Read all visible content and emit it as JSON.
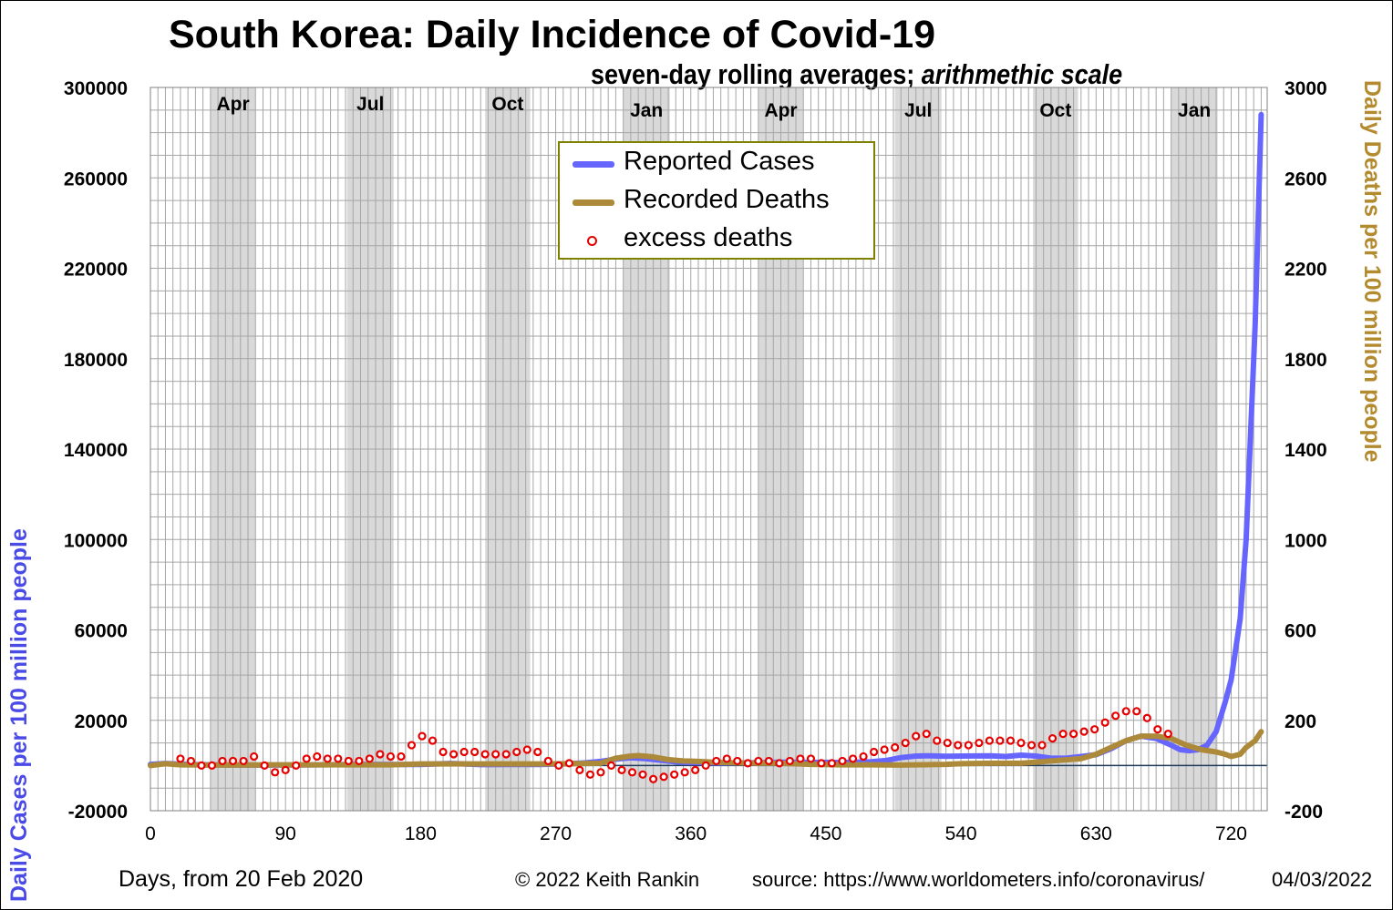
{
  "title": "South Korea: Daily Incidence of Covid-19",
  "subtitle_main": "seven-day rolling averages; ",
  "subtitle_italic": "arithmethic scale",
  "footer": {
    "xlabel": "Days,  from 20 Feb 2020",
    "copyright": "© 2022   Keith Rankin",
    "source": "source: https://www.worldometers.info/coronavirus/",
    "date": "04/03/2022"
  },
  "colors": {
    "cases": "#6666ff",
    "deaths": "#ad8a3a",
    "excess": "#e60000",
    "shade": "#d9d9d9"
  },
  "chart_data": {
    "type": "line",
    "xlabel": "Days,  from 20 Feb 2020",
    "ylabel_left": "Daily Cases per 100 million people",
    "ylabel_right": "Daily Deaths per 100 million people",
    "xlim": [
      0,
      744
    ],
    "ylim_left": [
      -20000,
      300000
    ],
    "ylim_right": [
      -200,
      3000
    ],
    "x_ticks": [
      "0",
      "90",
      "180",
      "270",
      "360",
      "450",
      "540",
      "630",
      "720"
    ],
    "y_ticks_left": [
      "300000",
      "260000",
      "220000",
      "180000",
      "140000",
      "100000",
      "60000",
      "20000",
      "-20000"
    ],
    "y_ticks_right": [
      "3000",
      "2600",
      "2200",
      "1800",
      "1400",
      "1000",
      "600",
      "200",
      "-200"
    ],
    "grid": true,
    "legend_position": "top-center",
    "shaded_bands": [
      {
        "label": "Apr",
        "start": 40,
        "end": 70
      },
      {
        "label": "Jul",
        "start": 131,
        "end": 162
      },
      {
        "label": "Oct",
        "start": 223,
        "end": 253
      },
      {
        "label": "Jan",
        "start": 315,
        "end": 346
      },
      {
        "label": "Apr",
        "start": 405,
        "end": 435
      },
      {
        "label": "Jul",
        "start": 496,
        "end": 527
      },
      {
        "label": "Oct",
        "start": 588,
        "end": 618
      },
      {
        "label": "Jan",
        "start": 680,
        "end": 711
      }
    ],
    "series": [
      {
        "name": "Reported Cases",
        "axis": "left",
        "x": [
          0,
          10,
          20,
          30,
          40,
          60,
          80,
          100,
          120,
          140,
          160,
          180,
          200,
          220,
          240,
          260,
          280,
          290,
          300,
          310,
          320,
          330,
          340,
          350,
          360,
          380,
          400,
          420,
          440,
          460,
          480,
          490,
          500,
          510,
          520,
          530,
          540,
          560,
          570,
          580,
          590,
          600,
          610,
          620,
          630,
          640,
          650,
          660,
          670,
          680,
          686,
          692,
          698,
          704,
          710,
          716,
          720,
          726,
          730,
          736,
          740
        ],
        "values": [
          500,
          900,
          600,
          400,
          300,
          200,
          200,
          250,
          350,
          500,
          450,
          450,
          900,
          400,
          450,
          450,
          800,
          1200,
          1800,
          2800,
          3400,
          3000,
          2300,
          1600,
          1300,
          1100,
          1200,
          1500,
          1400,
          1300,
          1700,
          2200,
          3500,
          4200,
          4300,
          4100,
          4200,
          4300,
          4000,
          4600,
          4200,
          3200,
          3200,
          4000,
          4800,
          7500,
          11000,
          13000,
          12000,
          9000,
          7000,
          6500,
          7000,
          9000,
          15000,
          28000,
          38000,
          65000,
          100000,
          195000,
          288000
        ]
      },
      {
        "name": "Recorded Deaths",
        "axis": "right",
        "x": [
          0,
          10,
          20,
          40,
          60,
          80,
          100,
          120,
          140,
          160,
          180,
          200,
          220,
          240,
          260,
          280,
          300,
          310,
          320,
          325,
          335,
          345,
          355,
          365,
          375,
          390,
          405,
          420,
          440,
          460,
          480,
          500,
          510,
          520,
          530,
          540,
          560,
          580,
          600,
          620,
          630,
          640,
          650,
          660,
          665,
          670,
          680,
          690,
          700,
          710,
          716,
          720,
          726,
          730,
          736,
          740
        ],
        "values": [
          0,
          8,
          3,
          2,
          2,
          3,
          3,
          3,
          3,
          3,
          7,
          7,
          7,
          7,
          7,
          8,
          10,
          32,
          42,
          44,
          38,
          26,
          20,
          18,
          15,
          12,
          10,
          10,
          5,
          3,
          3,
          2,
          3,
          4,
          5,
          8,
          10,
          10,
          20,
          30,
          50,
          80,
          110,
          130,
          130,
          130,
          120,
          90,
          70,
          60,
          50,
          40,
          50,
          80,
          110,
          150
        ]
      },
      {
        "name": "excess deaths",
        "axis": "right",
        "marker": "circle",
        "x": [
          20,
          27,
          34,
          41,
          48,
          55,
          62,
          69,
          76,
          83,
          90,
          97,
          104,
          111,
          118,
          125,
          132,
          139,
          146,
          153,
          160,
          167,
          174,
          181,
          188,
          195,
          202,
          209,
          216,
          223,
          230,
          237,
          244,
          251,
          258,
          265,
          272,
          279,
          286,
          293,
          300,
          307,
          314,
          321,
          328,
          335,
          342,
          349,
          356,
          363,
          370,
          377,
          384,
          391,
          398,
          405,
          412,
          419,
          426,
          433,
          440,
          447,
          454,
          461,
          468,
          475,
          482,
          489,
          496,
          503,
          510,
          517,
          524,
          531,
          538,
          545,
          552,
          559,
          566,
          573,
          580,
          587,
          594,
          601,
          608,
          615,
          622,
          629,
          636,
          643,
          650,
          657,
          664,
          671,
          678
        ],
        "values": [
          30,
          20,
          0,
          0,
          20,
          20,
          20,
          40,
          0,
          -30,
          -20,
          0,
          30,
          40,
          30,
          30,
          20,
          20,
          30,
          50,
          40,
          40,
          90,
          130,
          110,
          60,
          50,
          60,
          60,
          50,
          50,
          50,
          60,
          70,
          60,
          20,
          0,
          10,
          -20,
          -40,
          -30,
          0,
          -20,
          -30,
          -40,
          -60,
          -50,
          -40,
          -30,
          -20,
          0,
          20,
          30,
          20,
          10,
          20,
          20,
          10,
          20,
          30,
          30,
          10,
          10,
          20,
          30,
          40,
          60,
          70,
          80,
          100,
          130,
          140,
          110,
          100,
          90,
          90,
          100,
          110,
          110,
          110,
          100,
          90,
          90,
          120,
          140,
          140,
          150,
          160,
          190,
          220,
          240,
          240,
          210,
          160,
          140
        ]
      }
    ]
  }
}
